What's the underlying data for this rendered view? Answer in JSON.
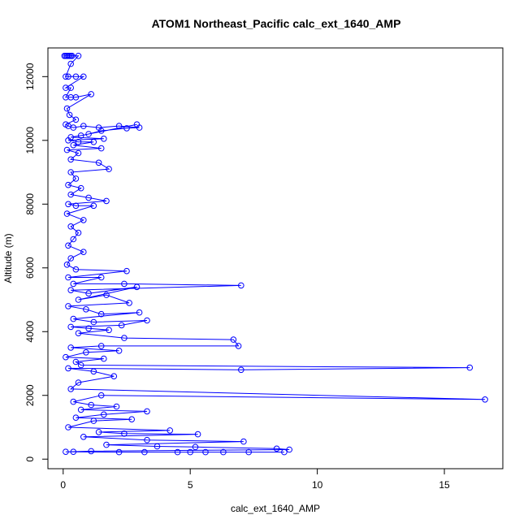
{
  "chart_data": {
    "type": "line",
    "title": "ATOM1 Northeast_Pacific calc_ext_1640_AMP",
    "xlabel": "calc_ext_1640_AMP",
    "ylabel": "Altitude (m)",
    "xlim": [
      -0.6,
      17.3
    ],
    "ylim": [
      -300,
      12900
    ],
    "xticks": [
      0,
      5,
      10,
      15
    ],
    "yticks": [
      0,
      2000,
      4000,
      6000,
      8000,
      10000,
      12000
    ],
    "grid": false,
    "legend": "none",
    "series": [
      {
        "color": "#0000ff",
        "marker": "open-circle",
        "points": [
          [
            0.05,
            12650
          ],
          [
            0.1,
            12650
          ],
          [
            0.15,
            12650
          ],
          [
            0.2,
            12650
          ],
          [
            0.25,
            12650
          ],
          [
            0.3,
            12650
          ],
          [
            0.35,
            12650
          ],
          [
            0.6,
            12650
          ],
          [
            0.3,
            12400
          ],
          [
            0.1,
            12000
          ],
          [
            0.2,
            12000
          ],
          [
            0.5,
            12000
          ],
          [
            0.8,
            12000
          ],
          [
            0.1,
            11650
          ],
          [
            0.3,
            11650
          ],
          [
            0.1,
            11350
          ],
          [
            0.3,
            11350
          ],
          [
            0.5,
            11350
          ],
          [
            1.1,
            11450
          ],
          [
            0.15,
            11000
          ],
          [
            0.25,
            10800
          ],
          [
            0.5,
            10650
          ],
          [
            0.1,
            10500
          ],
          [
            0.2,
            10450
          ],
          [
            0.4,
            10400
          ],
          [
            0.8,
            10450
          ],
          [
            1.4,
            10400
          ],
          [
            2.2,
            10450
          ],
          [
            3.0,
            10400
          ],
          [
            2.5,
            10380
          ],
          [
            1.5,
            10300
          ],
          [
            1.0,
            10200
          ],
          [
            2.9,
            10500
          ],
          [
            0.7,
            10150
          ],
          [
            0.3,
            10100
          ],
          [
            1.6,
            10050
          ],
          [
            0.2,
            10000
          ],
          [
            0.6,
            9950
          ],
          [
            1.2,
            9950
          ],
          [
            0.4,
            9850
          ],
          [
            1.5,
            9750
          ],
          [
            0.15,
            9700
          ],
          [
            0.6,
            9600
          ],
          [
            0.3,
            9400
          ],
          [
            1.4,
            9300
          ],
          [
            1.8,
            9100
          ],
          [
            0.3,
            9000
          ],
          [
            0.5,
            8800
          ],
          [
            0.2,
            8600
          ],
          [
            0.7,
            8500
          ],
          [
            0.3,
            8300
          ],
          [
            1.0,
            8200
          ],
          [
            1.7,
            8100
          ],
          [
            0.2,
            8000
          ],
          [
            0.5,
            7950
          ],
          [
            1.2,
            7950
          ],
          [
            0.15,
            7700
          ],
          [
            0.8,
            7500
          ],
          [
            0.3,
            7300
          ],
          [
            0.6,
            7100
          ],
          [
            0.4,
            6900
          ],
          [
            0.2,
            6700
          ],
          [
            0.8,
            6500
          ],
          [
            0.3,
            6300
          ],
          [
            0.15,
            6100
          ],
          [
            0.5,
            5950
          ],
          [
            2.5,
            5900
          ],
          [
            0.2,
            5700
          ],
          [
            1.5,
            5700
          ],
          [
            0.4,
            5500
          ],
          [
            2.4,
            5500
          ],
          [
            7.0,
            5450
          ],
          [
            0.3,
            5300
          ],
          [
            1.0,
            5200
          ],
          [
            2.9,
            5400
          ],
          [
            0.6,
            5000
          ],
          [
            1.7,
            5150
          ],
          [
            2.6,
            4900
          ],
          [
            0.2,
            4800
          ],
          [
            0.9,
            4700
          ],
          [
            1.5,
            4550
          ],
          [
            3.0,
            4600
          ],
          [
            0.4,
            4400
          ],
          [
            1.2,
            4300
          ],
          [
            3.3,
            4350
          ],
          [
            2.3,
            4200
          ],
          [
            0.3,
            4150
          ],
          [
            1.0,
            4100
          ],
          [
            1.8,
            4050
          ],
          [
            0.6,
            3950
          ],
          [
            2.4,
            3800
          ],
          [
            6.7,
            3750
          ],
          [
            6.9,
            3550
          ],
          [
            1.5,
            3550
          ],
          [
            0.3,
            3500
          ],
          [
            2.2,
            3400
          ],
          [
            0.9,
            3350
          ],
          [
            0.1,
            3200
          ],
          [
            1.6,
            3150
          ],
          [
            0.5,
            3050
          ],
          [
            0.7,
            2950
          ],
          [
            16.0,
            2870
          ],
          [
            7.0,
            2800
          ],
          [
            0.2,
            2850
          ],
          [
            1.2,
            2750
          ],
          [
            2.0,
            2600
          ],
          [
            0.6,
            2400
          ],
          [
            0.3,
            2200
          ],
          [
            16.6,
            1870
          ],
          [
            1.5,
            2000
          ],
          [
            0.4,
            1800
          ],
          [
            1.1,
            1700
          ],
          [
            2.1,
            1650
          ],
          [
            0.7,
            1550
          ],
          [
            3.3,
            1500
          ],
          [
            1.6,
            1400
          ],
          [
            0.5,
            1300
          ],
          [
            2.7,
            1250
          ],
          [
            1.2,
            1200
          ],
          [
            0.2,
            1000
          ],
          [
            4.2,
            900
          ],
          [
            1.4,
            850
          ],
          [
            2.4,
            800
          ],
          [
            5.3,
            780
          ],
          [
            0.8,
            700
          ],
          [
            3.3,
            600
          ],
          [
            7.1,
            550
          ],
          [
            1.7,
            450
          ],
          [
            3.7,
            400
          ],
          [
            5.2,
            380
          ],
          [
            8.4,
            330
          ],
          [
            8.9,
            300
          ],
          [
            1.1,
            250
          ],
          [
            0.1,
            230
          ],
          [
            0.4,
            230
          ],
          [
            2.2,
            220
          ],
          [
            3.2,
            220
          ],
          [
            4.5,
            220
          ],
          [
            5.0,
            220
          ],
          [
            5.6,
            220
          ],
          [
            6.3,
            220
          ],
          [
            7.3,
            220
          ],
          [
            8.7,
            220
          ]
        ]
      }
    ]
  }
}
